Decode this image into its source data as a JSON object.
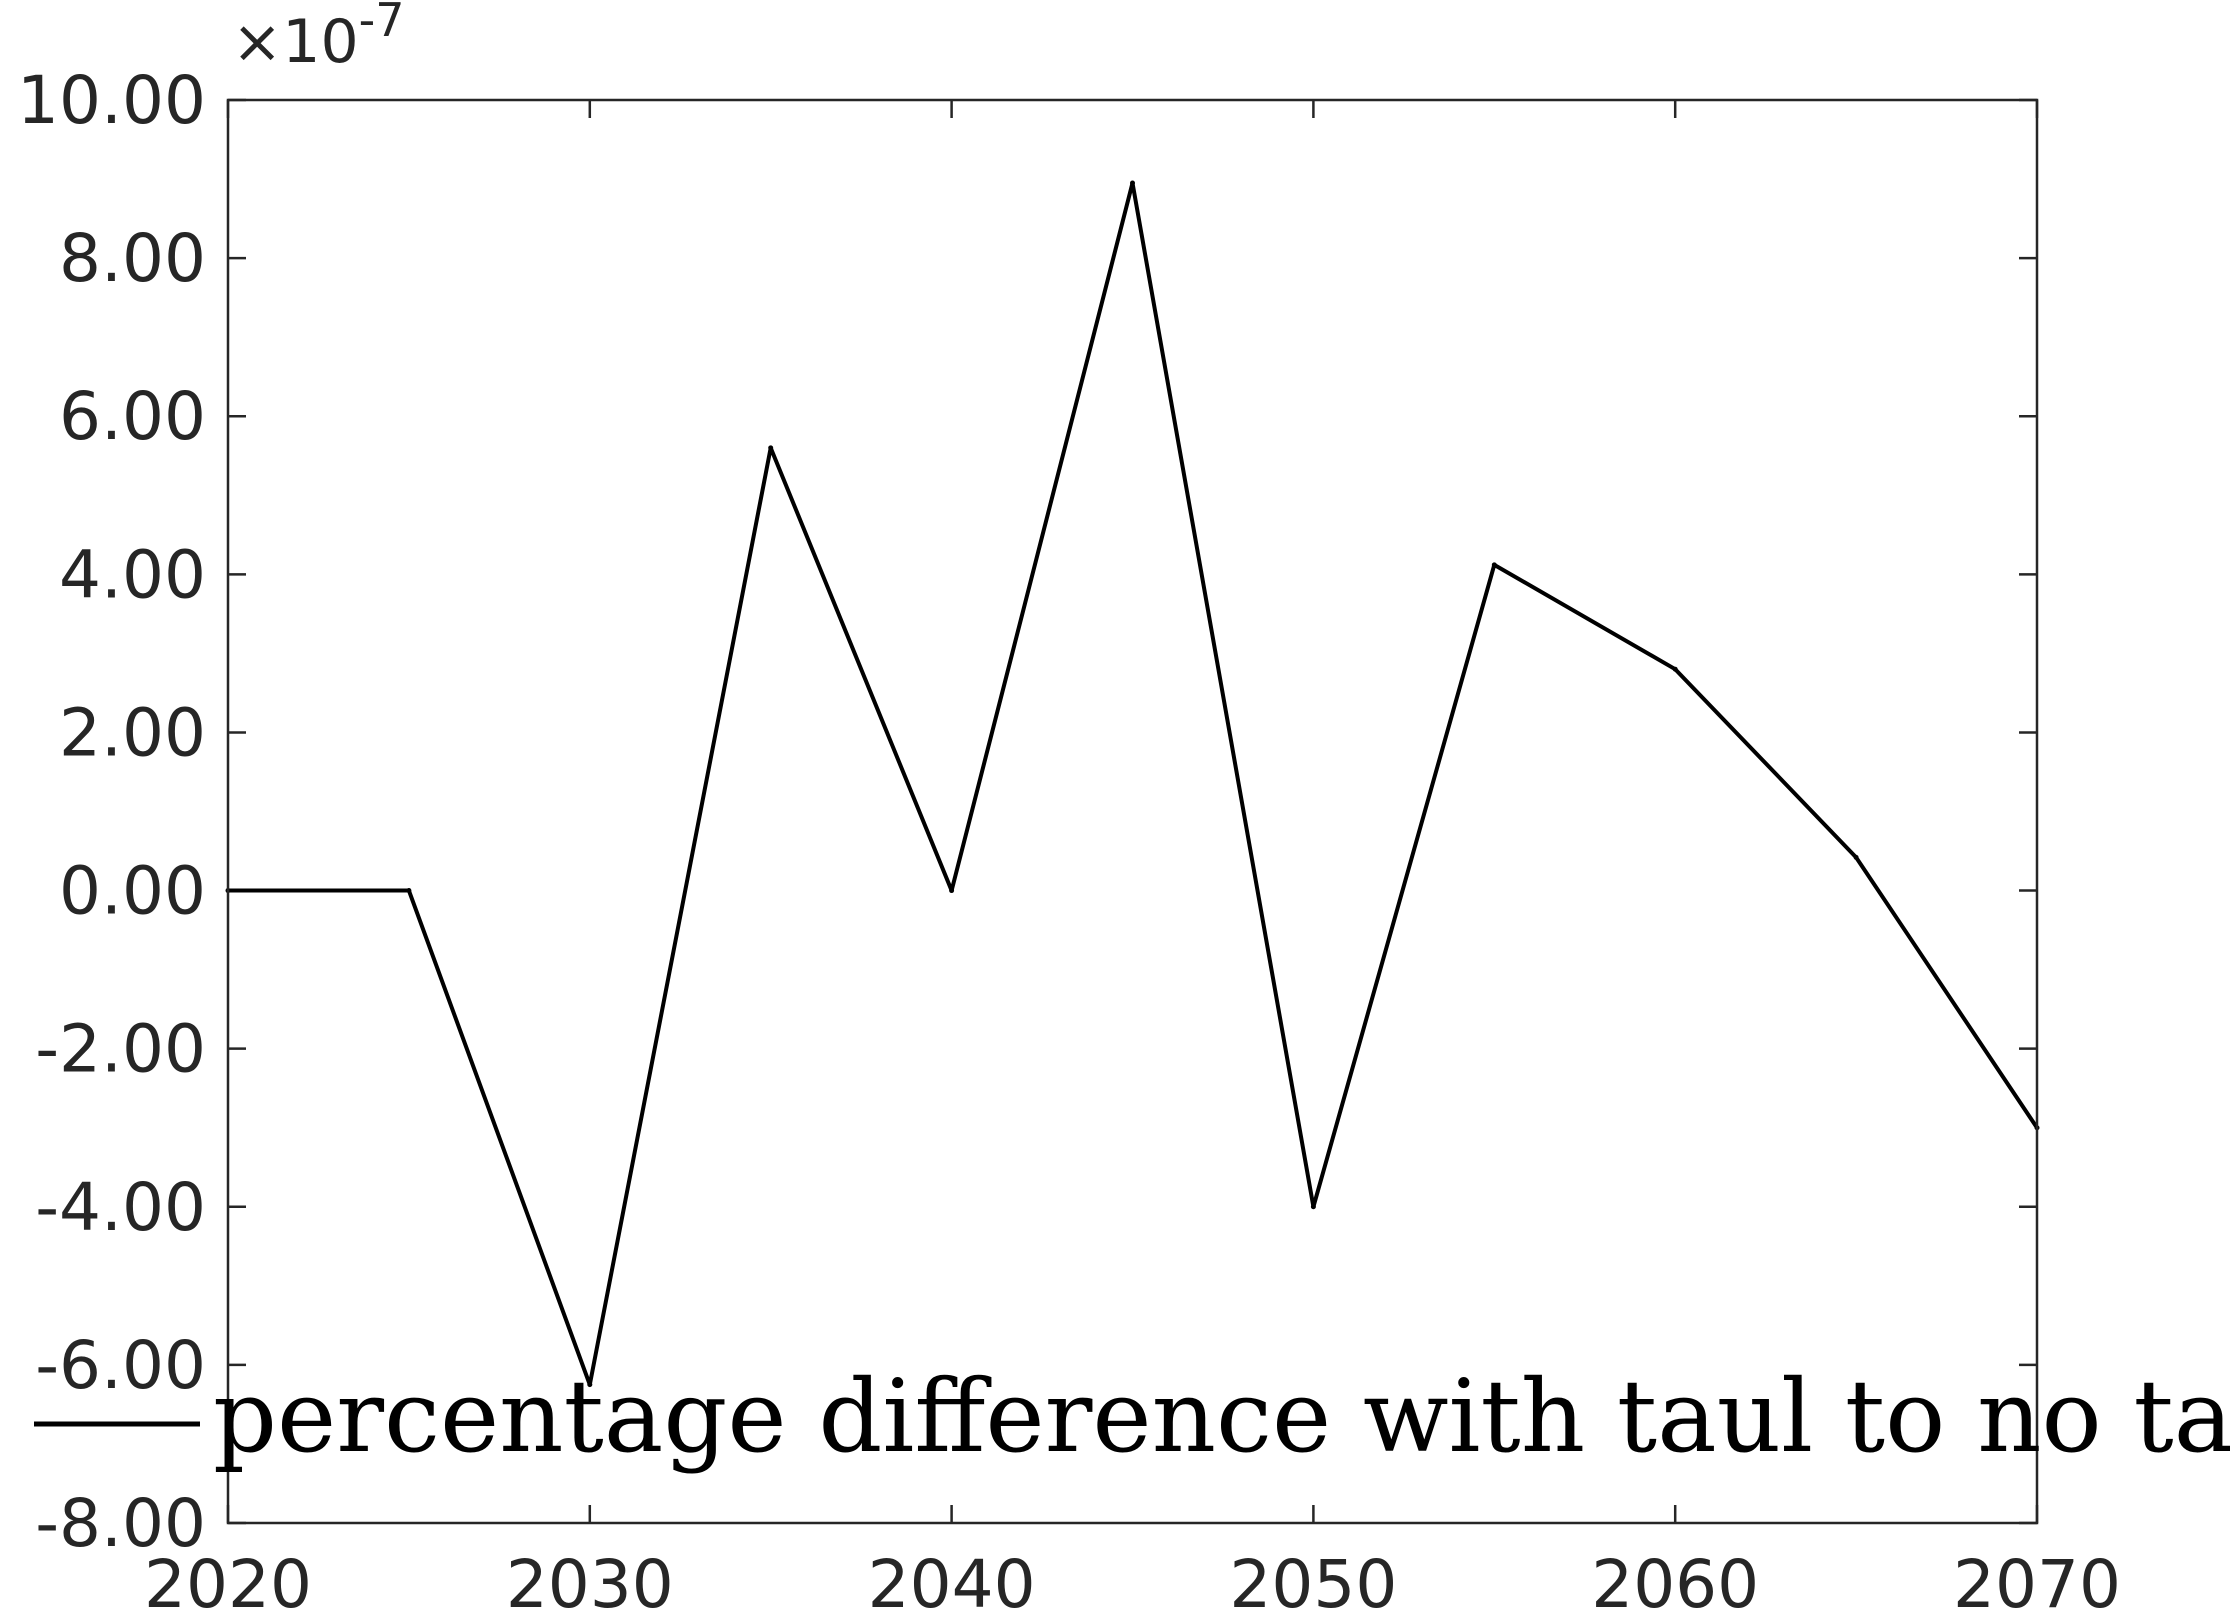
{
  "chart_data": {
    "type": "line",
    "title": "",
    "xlabel": "",
    "ylabel": "",
    "x": [
      2020,
      2025,
      2030,
      2035,
      2040,
      2045,
      2050,
      2055,
      2060,
      2065,
      2070
    ],
    "series": [
      {
        "name": "percentage difference with taul to no taul",
        "values": [
          0.0,
          0.0,
          -6.25,
          5.6,
          0.0,
          8.95,
          -4.0,
          4.12,
          2.8,
          0.42,
          -3.0
        ]
      }
    ],
    "y_scale_label": {
      "base": "×10",
      "exponent": "-7"
    },
    "xlim": [
      2020,
      2070
    ],
    "ylim": [
      -8,
      10
    ],
    "x_ticks": [
      2020,
      2030,
      2040,
      2050,
      2060,
      2070
    ],
    "x_tick_labels": [
      "2020",
      "2030",
      "2040",
      "2050",
      "2060",
      "2070"
    ],
    "y_ticks": [
      -8,
      -6,
      -4,
      -2,
      0,
      2,
      4,
      6,
      8,
      10
    ],
    "y_tick_labels": [
      "-8.00",
      "-6.00",
      "-4.00",
      "-2.00",
      "0.00",
      "2.00",
      "4.00",
      "6.00",
      "8.00",
      "10.00"
    ],
    "grid": false,
    "legend_position": "bottom-right",
    "colors": {
      "line": "#000000",
      "axis": "#262626",
      "background": "#ffffff"
    }
  }
}
